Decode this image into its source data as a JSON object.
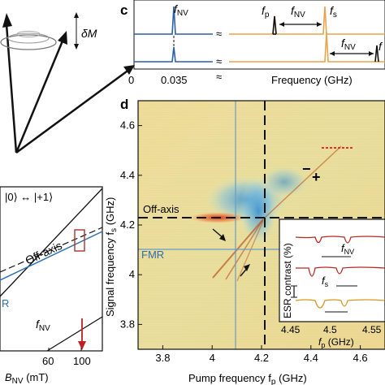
{
  "panels": {
    "c": {
      "label": "c",
      "top_label_fnv": "f",
      "top_label_fnv_sub": "NV",
      "fp": "f",
      "fp_sub": "p",
      "fnv_arrow": "f",
      "fnv_arrow_sub": "NV",
      "fs": "f",
      "fs_sub": "s",
      "bottom_fnv": "f",
      "bottom_fnv_sub": "NV",
      "bottom_f_cut": "f",
      "tick_0": "0",
      "tick_0035": "0.035",
      "xlabel": "Frequency (GHz)",
      "colors": {
        "blue": "#2b5fa6",
        "orange": "#e6a54a",
        "black": "#111111"
      }
    },
    "d": {
      "label": "d",
      "xlabel": "Pump frequency f",
      "xlabel_sub": "p",
      "xlabel_unit": " (GHz)",
      "ylabel": "Signal frequency f",
      "ylabel_sub": "s",
      "ylabel_unit": " (GHz)",
      "off_axis": "Off-axis",
      "fmr": "FMR",
      "minus": "−",
      "plus": "+",
      "inset": {
        "ylabel": "ESR contrast (%)",
        "xlabel": "f",
        "xlabel_sub": "p",
        "xlabel_unit": " (GHz)",
        "fnv": "f",
        "fnv_sub": "NV",
        "fs": "f",
        "fs_sub": "s",
        "xticks": [
          "4.45",
          "4.5",
          "4.55"
        ]
      }
    },
    "left_top": {
      "delta_m": "δM"
    },
    "left_bottom": {
      "transition": "|0⟩ ↔ |+1⟩",
      "off_axis": "Off-axis",
      "fmr_cut": "R",
      "fnv": "f",
      "fnv_sub": "NV",
      "xlabel": "B",
      "xlabel_sub": "NV",
      "xlabel_unit": " (mT)",
      "xticks": [
        "60",
        "100"
      ]
    }
  },
  "chart_data": {
    "type": "heatmap",
    "xlabel": "Pump frequency fp (GHz)",
    "ylabel": "Signal frequency fs (GHz)",
    "xlim": [
      3.7,
      4.7
    ],
    "ylim": [
      3.7,
      4.7
    ],
    "xticks": [
      3.8,
      4,
      4.2,
      4.4,
      4.6
    ],
    "yticks": [
      3.8,
      4,
      4.2,
      4.4,
      4.6
    ],
    "x_tick_labels": [
      "3.8",
      "4",
      "4.2",
      "4.4",
      "4.6"
    ],
    "y_tick_labels": [
      "3.8",
      "4",
      "4.2",
      "4.4",
      "4.6"
    ],
    "fmr_line_fp": 4.11,
    "fmr_line_fs": 4.11,
    "off_axis_fs": 4.23,
    "off_axis_fp": 4.23
  }
}
